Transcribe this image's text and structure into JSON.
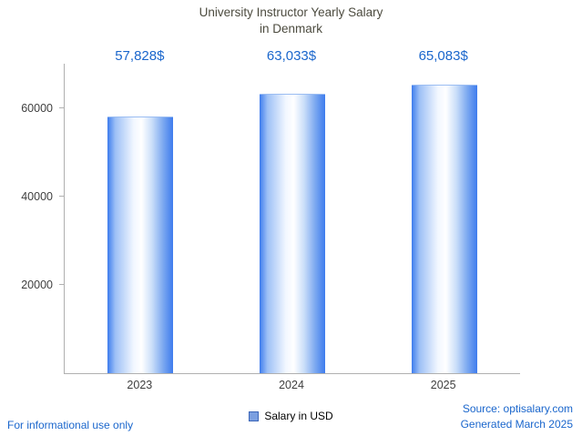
{
  "title": {
    "line1": "University Instructor Yearly Salary",
    "line2": "in Denmark"
  },
  "chart_data": {
    "type": "bar",
    "title": "University Instructor Yearly Salary in Denmark",
    "categories": [
      "2023",
      "2024",
      "2025"
    ],
    "values": [
      57828,
      63033,
      65083
    ],
    "value_labels": [
      "57,828$",
      "63,033$",
      "65,083$"
    ],
    "series_name": "Salary in USD",
    "xlabel": "",
    "ylabel": "",
    "ylim": [
      0,
      70000
    ],
    "yticks": [
      20000,
      40000,
      60000
    ],
    "ytick_labels": [
      "20000",
      "40000",
      "60000"
    ],
    "grid": false,
    "legend_position": "bottom",
    "bar_color": "#3e7ced",
    "bar_gradient": "blue-white-blue horizontal"
  },
  "legend": {
    "label": "Salary in USD",
    "swatch_color": "#7b9fe0"
  },
  "footer": {
    "left": "For informational use only",
    "source": "Source: optisalary.com",
    "generated": "Generated March 2025"
  },
  "colors": {
    "accent_blue": "#1a66cc",
    "title_text": "#4c4b3f",
    "axis_line": "#b0b0b0",
    "tick_text": "#3f3f3f"
  }
}
